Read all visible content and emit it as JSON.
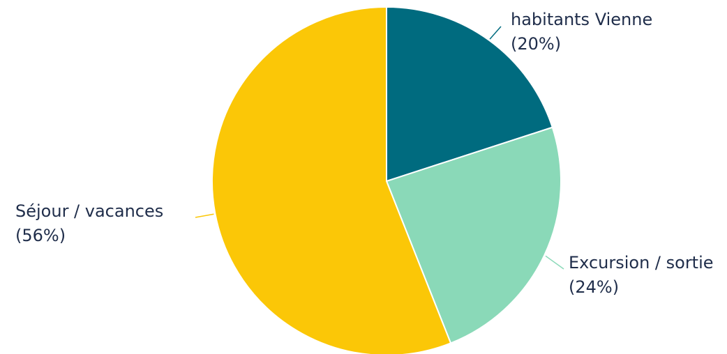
{
  "colors": {
    "background": "#ffffff",
    "label_text": "#1f2d4a",
    "slice_border": "#ffffff"
  },
  "chart_data": {
    "type": "pie",
    "title": "",
    "slices": [
      {
        "label": "habitants Vienne",
        "pct_text": "(20%)",
        "value": 20,
        "color": "#006b7f"
      },
      {
        "label": "Excursion / sortie",
        "pct_text": "(24%)",
        "value": 24,
        "color": "#8ad9b8"
      },
      {
        "label": "Séjour / vacances",
        "pct_text": "(56%)",
        "value": 56,
        "color": "#fbc707"
      }
    ],
    "start_angle": "12 o'clock",
    "direction": "clockwise",
    "legend": "none"
  }
}
